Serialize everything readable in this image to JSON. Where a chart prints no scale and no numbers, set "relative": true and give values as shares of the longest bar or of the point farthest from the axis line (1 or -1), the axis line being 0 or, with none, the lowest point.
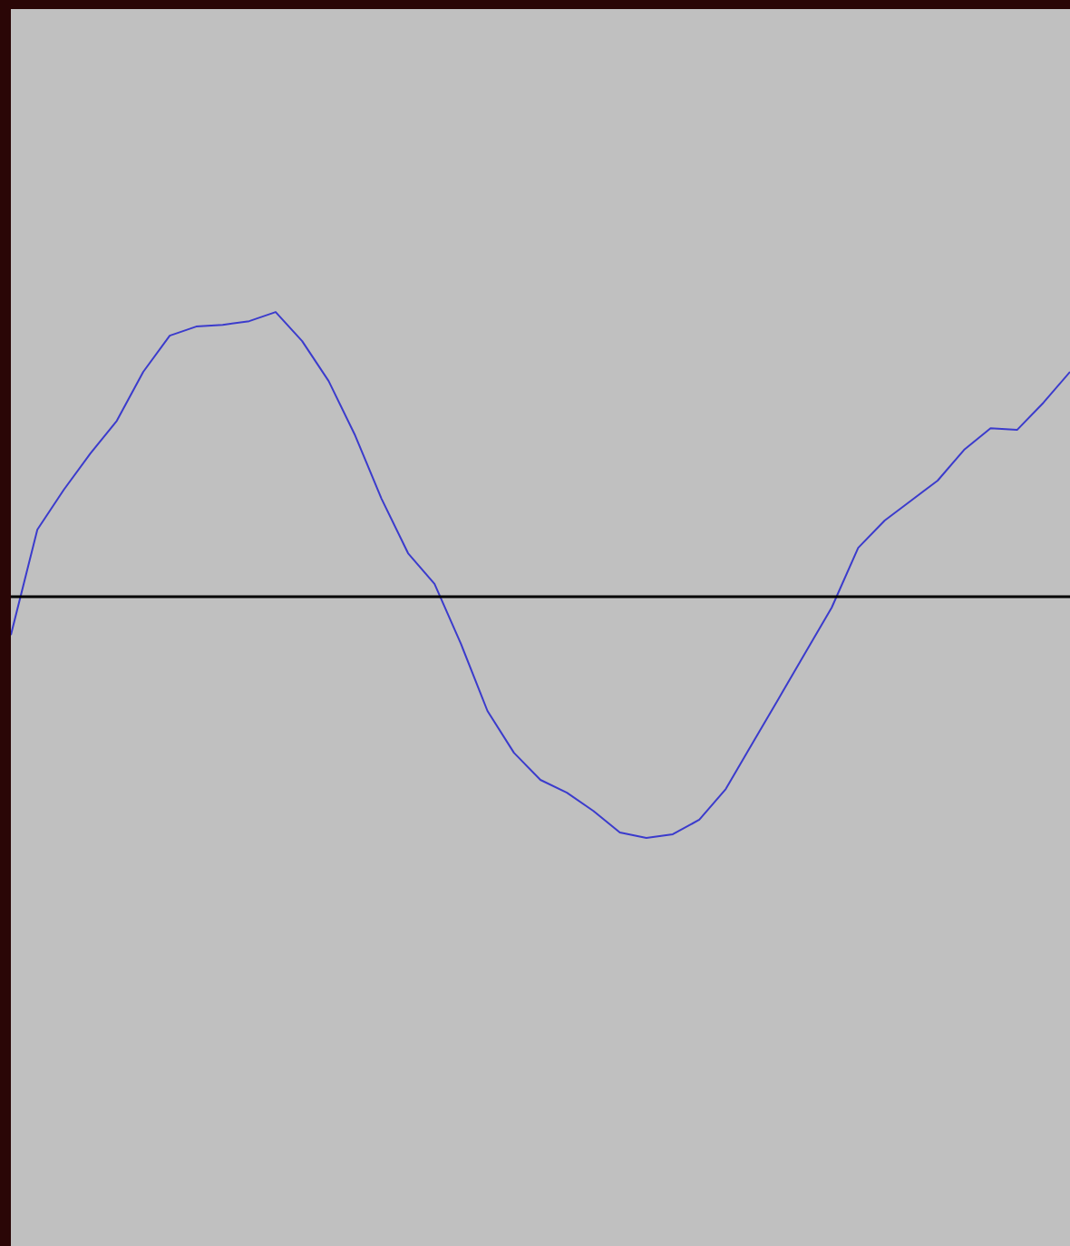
{
  "chart_data": {
    "type": "line",
    "relative": true,
    "categories": [
      null,
      null,
      null,
      null,
      null,
      null,
      null,
      null,
      null,
      null,
      null,
      null,
      null,
      null,
      null,
      null,
      null,
      null,
      null,
      null,
      null,
      null,
      null,
      null,
      null,
      null,
      null,
      null,
      null,
      null,
      null,
      null,
      null,
      null,
      null,
      null,
      null,
      null,
      null,
      null,
      null
    ],
    "series": [
      {
        "color": "#3b3bcc",
        "values": [
          -0.134,
          0.236,
          0.376,
          0.503,
          0.618,
          0.79,
          0.917,
          0.949,
          0.955,
          0.968,
          1,
          0.898,
          0.758,
          0.567,
          0.344,
          0.153,
          0.045,
          -0.166,
          -0.401,
          -0.548,
          -0.643,
          -0.688,
          -0.752,
          -0.828,
          -0.847,
          -0.834,
          -0.783,
          -0.675,
          -0.516,
          -0.357,
          -0.197,
          -0.038,
          0.172,
          0.268,
          0.338,
          0.408,
          0.516,
          0.592,
          0.586,
          0.682,
          0.79
        ]
      }
    ],
    "ref_lines": [
      {
        "axis": "y",
        "value": 0,
        "color": "#000000"
      }
    ],
    "marker": "none",
    "line_style": "solid"
  }
}
